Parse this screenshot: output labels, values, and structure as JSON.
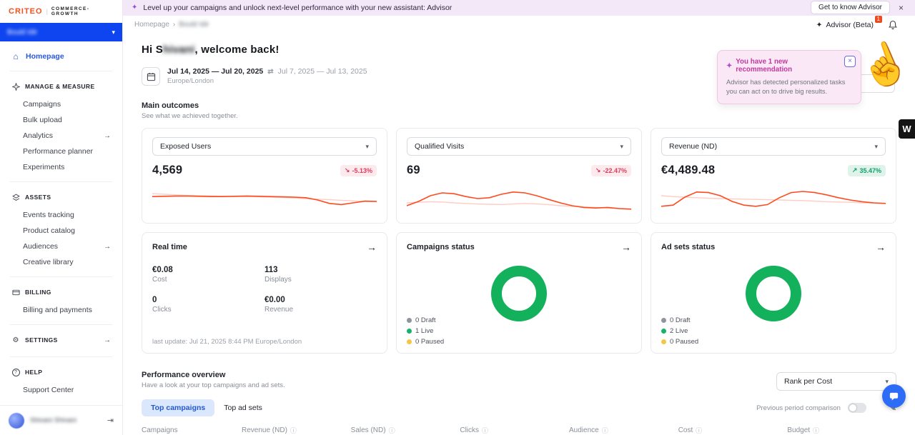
{
  "colors": {
    "accent_orange": "#ff4a1f",
    "brand_orange": "#f4501e",
    "account_blue": "#0f45f0",
    "advisor_purple": "#9b4dd6",
    "popup_pink": "#fae8f6",
    "live_green": "#17b26a",
    "paused_yellow": "#f2c744",
    "draft_gray": "#8f959e",
    "negative_red": "#dc3c5e",
    "positive_green": "#0e9f6e"
  },
  "icons": {
    "sparkle": "✦",
    "close": "×",
    "caret_down": "▾",
    "arrow_right": "→",
    "trend_down": "↘",
    "trend_up": "↗",
    "swap": "⇄",
    "home": "⌂",
    "info": "ⓘ",
    "pencil": "✎",
    "gear": "⚙",
    "question": "?",
    "collapse": "⇥",
    "pointer_hand": "☝",
    "w_overlay": "W"
  },
  "banner": {
    "text": "Level up your campaigns and unlock next-level performance with your new assistant: Advisor",
    "cta_label": "Get to know Advisor"
  },
  "sidebar": {
    "brand": "CRITEO",
    "brand_divider": "|",
    "brand_suffix": "COMMERCE-GROWTH",
    "account_name": "Bould Idir",
    "homepage_label": "Homepage",
    "sections": [
      {
        "label": "MANAGE & MEASURE",
        "items": [
          "Campaigns",
          "Bulk upload",
          "Analytics",
          "Performance planner",
          "Experiments"
        ]
      },
      {
        "label": "ASSETS",
        "items": [
          "Events tracking",
          "Product catalog",
          "Audiences",
          "Creative library"
        ]
      },
      {
        "label": "BILLING",
        "items": [
          "Billing and payments"
        ]
      },
      {
        "label": "SETTINGS",
        "items": []
      },
      {
        "label": "HELP",
        "items": [
          "Support Center"
        ]
      }
    ],
    "user_name": "Shivani Shivani"
  },
  "topbar": {
    "breadcrumb_home": "Homepage",
    "breadcrumb_sep": "›",
    "breadcrumb_current": "Bould Idir",
    "advisor_label": "Advisor (Beta)",
    "advisor_badge": "1"
  },
  "greeting": {
    "prefix": "Hi S",
    "blurred_name": "hivani",
    "suffix": ", welcome back!"
  },
  "recommendation_popup": {
    "title": "You have 1 new recommendation",
    "body": "Advisor has detected personalized tasks you can act on to drive big results."
  },
  "datebar": {
    "range": "Jul 14, 2025 — Jul 20, 2025",
    "compare_range": "Jul 7, 2025 — Jul 13, 2025",
    "timezone": "Europe/London"
  },
  "outcomes": {
    "title": "Main outcomes",
    "subtitle": "See what we achieved together.",
    "cards": [
      {
        "metric": "Exposed Users",
        "value": "4,569",
        "delta": "-5.13%",
        "spark_main": [
          52,
          53,
          54,
          54,
          53,
          52,
          52,
          53,
          54,
          53,
          52,
          51,
          50,
          48,
          40,
          28,
          24,
          30,
          36,
          35
        ],
        "spark_compare": [
          62,
          60,
          58,
          56,
          55,
          54,
          53,
          52,
          52,
          51,
          50,
          49,
          47,
          45,
          43,
          41,
          39,
          37,
          35,
          34
        ]
      },
      {
        "metric": "Qualified Visits",
        "value": "69",
        "delta": "-22.47%",
        "spark_main": [
          20,
          35,
          55,
          65,
          62,
          52,
          45,
          48,
          60,
          68,
          65,
          55,
          42,
          30,
          20,
          14,
          12,
          14,
          10,
          8
        ],
        "spark_compare": [
          30,
          32,
          34,
          33,
          30,
          28,
          26,
          25,
          24,
          26,
          28,
          26,
          24,
          20,
          18,
          16,
          14,
          12,
          10,
          9
        ]
      },
      {
        "metric": "Revenue (ND)",
        "value": "€4,489.48",
        "delta": "35.47%",
        "spark_main": [
          18,
          22,
          50,
          68,
          66,
          55,
          35,
          22,
          18,
          24,
          48,
          66,
          70,
          66,
          58,
          48,
          40,
          34,
          30,
          28
        ],
        "spark_compare": [
          55,
          52,
          50,
          48,
          46,
          45,
          44,
          43,
          42,
          41,
          40,
          39,
          38,
          36,
          34,
          33,
          32,
          30,
          29,
          28
        ]
      }
    ]
  },
  "realtime": {
    "title": "Real time",
    "stats": [
      {
        "value": "€0.08",
        "label": "Cost"
      },
      {
        "value": "113",
        "label": "Displays"
      },
      {
        "value": "0",
        "label": "Clicks"
      },
      {
        "value": "€0.00",
        "label": "Revenue"
      }
    ],
    "last_update": "last update: Jul 21, 2025 8:44 PM Europe/London"
  },
  "campaigns_status": {
    "title": "Campaigns status",
    "legend": [
      "0 Draft",
      "1 Live",
      "0 Paused"
    ]
  },
  "adsets_status": {
    "title": "Ad sets status",
    "legend": [
      "0 Draft",
      "2 Live",
      "0 Paused"
    ]
  },
  "performance": {
    "title": "Performance overview",
    "subtitle": "Have a look at your top campaigns and ad sets.",
    "rank_dropdown_value": "Rank per Cost",
    "tab_campaigns": "Top campaigns",
    "tab_adsets": "Top ad sets",
    "comparison_label": "Previous period comparison",
    "table_headers": [
      "Campaigns",
      "Revenue (ND)",
      "Sales (ND)",
      "Clicks",
      "Audience",
      "Cost",
      "Budget"
    ]
  }
}
